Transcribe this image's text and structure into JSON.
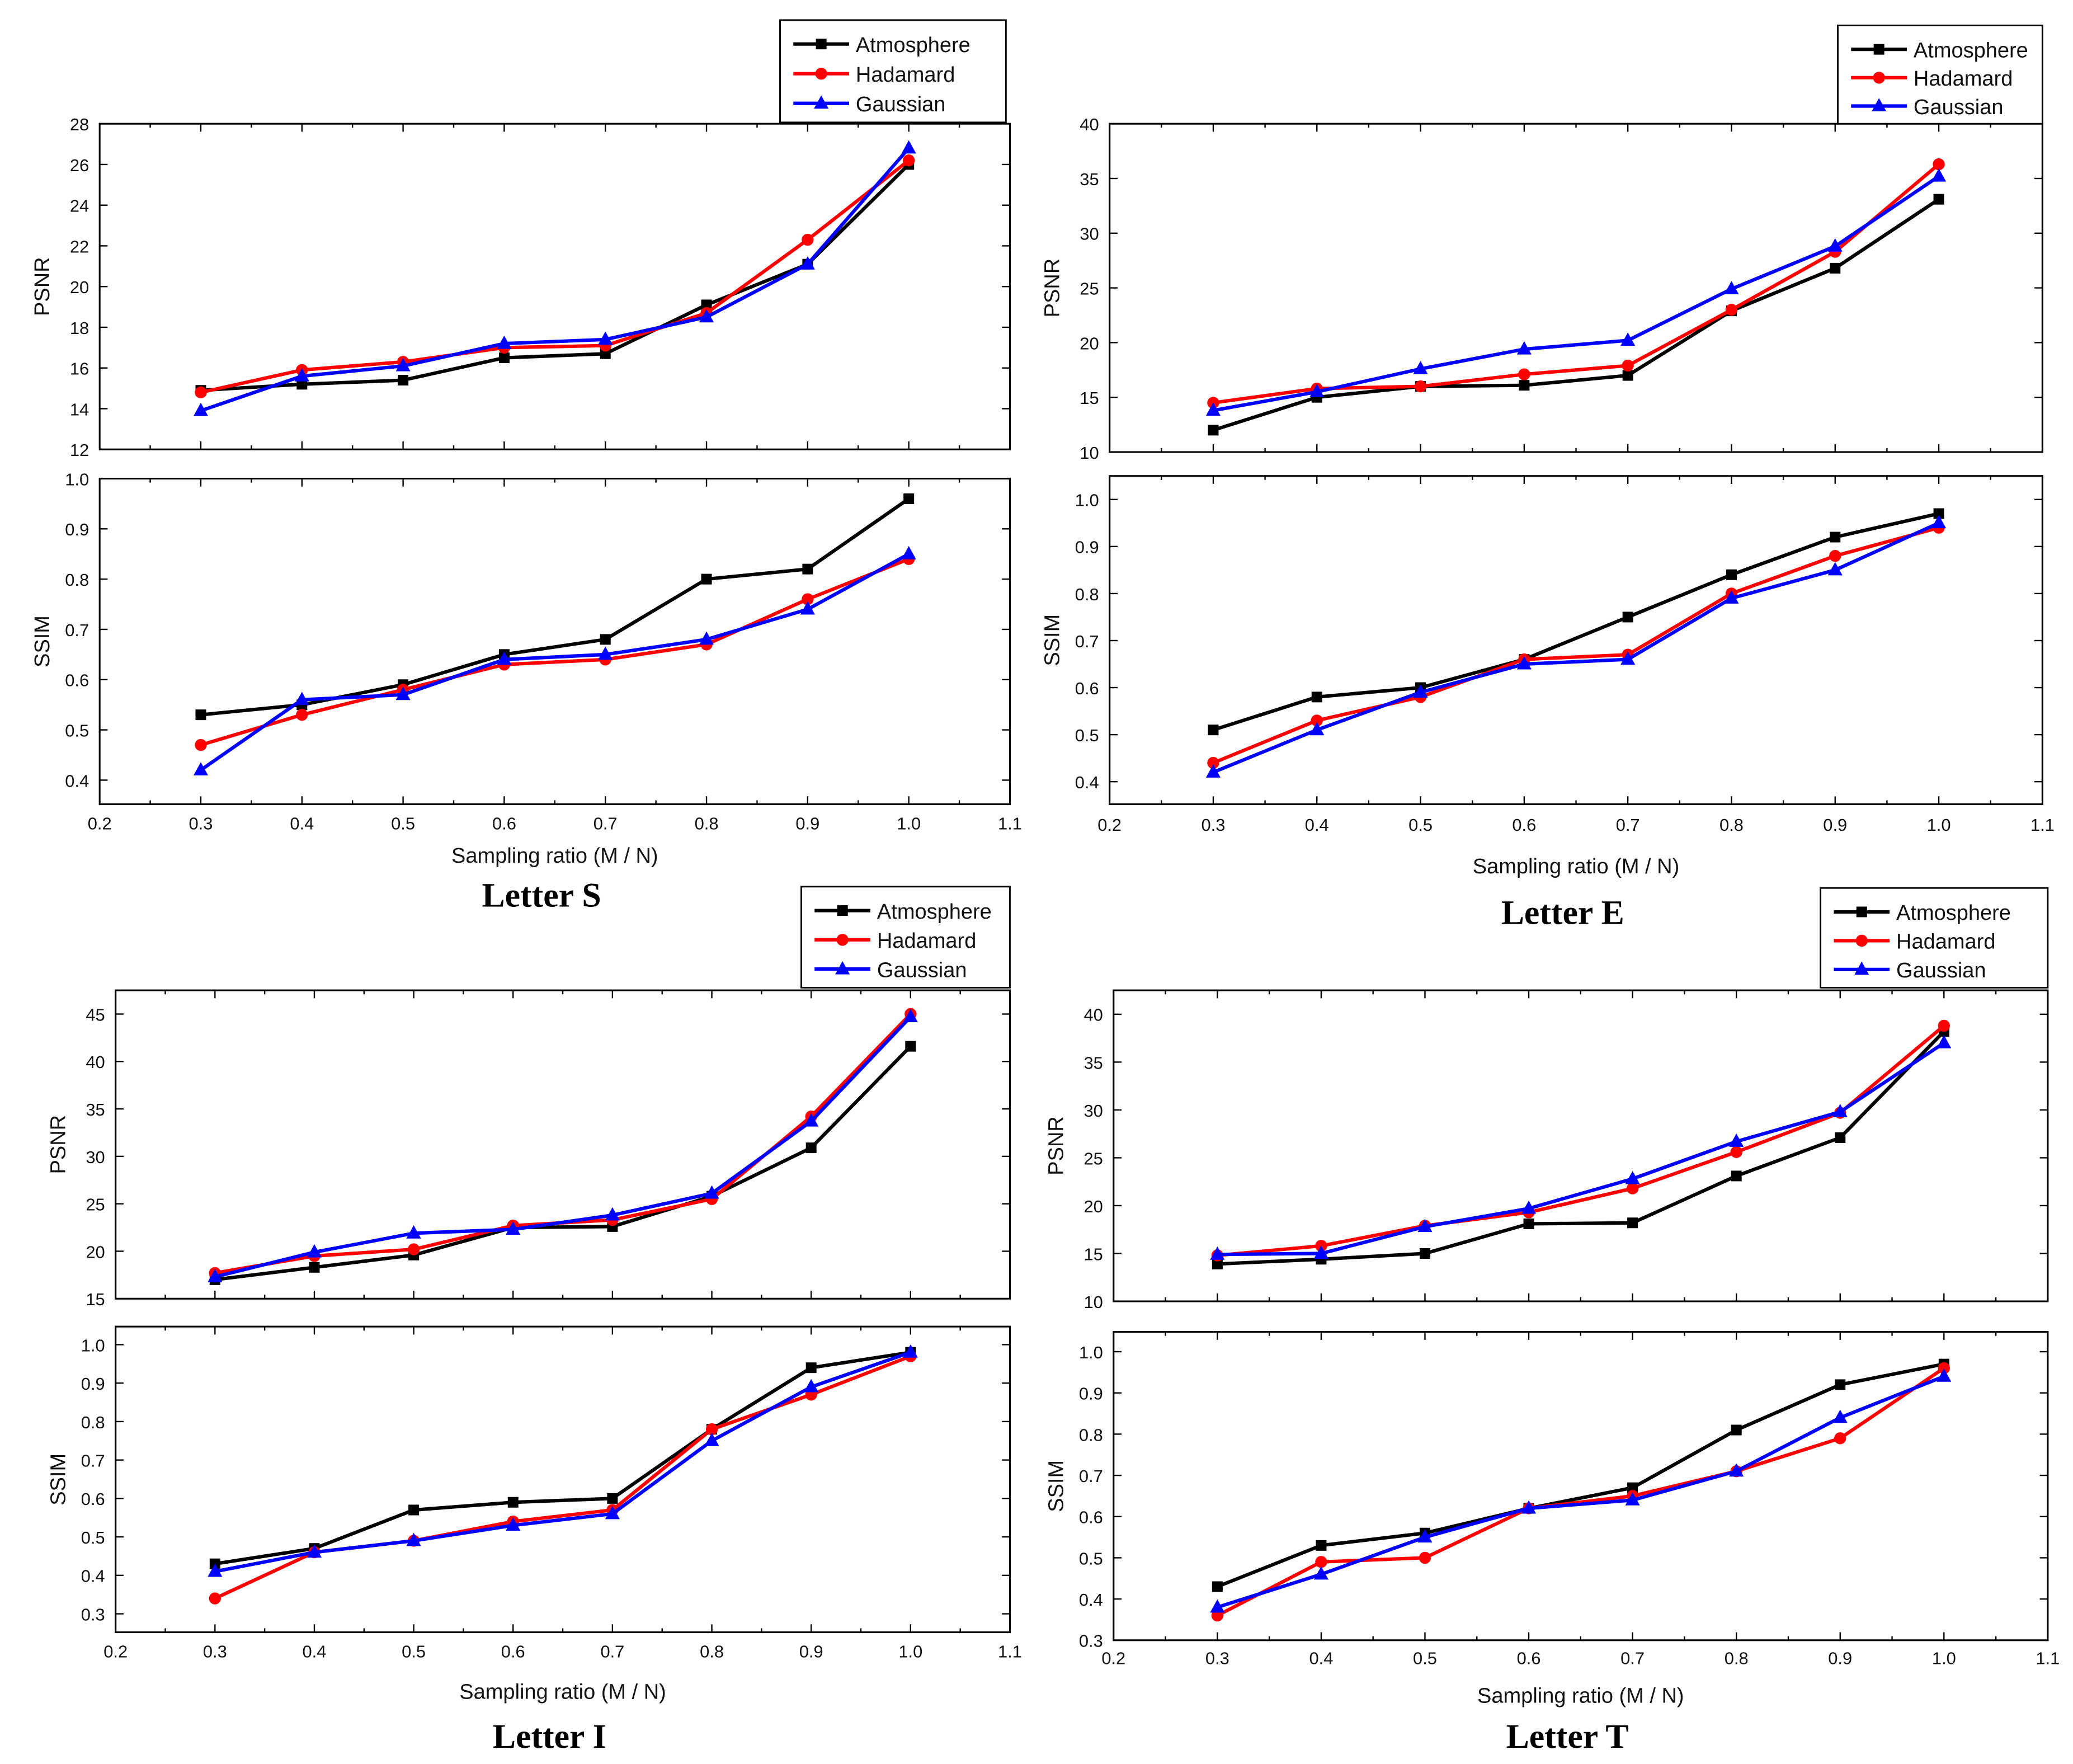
{
  "colors": {
    "Atmosphere": "#000000",
    "Hadamard": "#ff0000",
    "Gaussian": "#0000ff"
  },
  "chart_data": [
    {
      "title": "Letter S",
      "type": "line",
      "xlabel": "Sampling ratio (M / N)",
      "x": [
        0.3,
        0.4,
        0.5,
        0.6,
        0.7,
        0.8,
        0.9,
        1.0
      ],
      "xlim": [
        0.2,
        1.1
      ],
      "xticks": [
        "0.2",
        "0.3",
        "0.4",
        "0.5",
        "0.6",
        "0.7",
        "0.8",
        "0.9",
        "1.0",
        "1.1"
      ],
      "legend": [
        "Atmosphere",
        "Hadamard",
        "Gaussian"
      ],
      "legend_position": "top-right",
      "psnr": {
        "ylabel": "PSNR",
        "ylim": [
          12,
          28
        ],
        "yticks": [
          "12",
          "14",
          "16",
          "18",
          "20",
          "22",
          "24",
          "26",
          "28"
        ],
        "series": [
          {
            "name": "Atmosphere",
            "marker": "square",
            "values": [
              14.9,
              15.2,
              15.4,
              16.5,
              16.7,
              19.1,
              21.1,
              26.0
            ]
          },
          {
            "name": "Hadamard",
            "marker": "circle",
            "values": [
              14.8,
              15.9,
              16.3,
              17.0,
              17.1,
              18.7,
              22.3,
              26.2
            ]
          },
          {
            "name": "Gaussian",
            "marker": "triangle",
            "values": [
              13.9,
              15.6,
              16.1,
              17.2,
              17.4,
              18.5,
              21.1,
              26.8
            ]
          }
        ]
      },
      "ssim": {
        "ylabel": "SSIM",
        "ylim": [
          0.352,
          1.0
        ],
        "yticks": [
          "0.4",
          "0.5",
          "0.6",
          "0.7",
          "0.8",
          "0.9",
          "1.0"
        ],
        "series": [
          {
            "name": "Atmosphere",
            "marker": "square",
            "values": [
              0.53,
              0.55,
              0.59,
              0.65,
              0.68,
              0.8,
              0.82,
              0.96
            ]
          },
          {
            "name": "Hadamard",
            "marker": "circle",
            "values": [
              0.47,
              0.53,
              0.58,
              0.63,
              0.64,
              0.67,
              0.76,
              0.84
            ]
          },
          {
            "name": "Gaussian",
            "marker": "triangle",
            "values": [
              0.42,
              0.56,
              0.57,
              0.64,
              0.65,
              0.68,
              0.74,
              0.85
            ]
          }
        ]
      }
    },
    {
      "title": "Letter E",
      "type": "line",
      "xlabel": "Sampling ratio (M / N)",
      "x": [
        0.3,
        0.4,
        0.5,
        0.6,
        0.7,
        0.8,
        0.9,
        1.0
      ],
      "xlim": [
        0.2,
        1.1
      ],
      "xticks": [
        "0.2",
        "0.3",
        "0.4",
        "0.5",
        "0.6",
        "0.7",
        "0.8",
        "0.9",
        "1.0",
        "1.1"
      ],
      "legend": [
        "Atmosphere",
        "Hadamard",
        "Gaussian"
      ],
      "legend_position": "top-right",
      "psnr": {
        "ylabel": "PSNR",
        "ylim": [
          10,
          40
        ],
        "yticks": [
          "10",
          "15",
          "20",
          "25",
          "30",
          "35",
          "40"
        ],
        "series": [
          {
            "name": "Atmosphere",
            "marker": "square",
            "values": [
              12.0,
              15.0,
              16.0,
              16.1,
              17.0,
              22.9,
              26.8,
              33.1
            ]
          },
          {
            "name": "Hadamard",
            "marker": "circle",
            "values": [
              14.5,
              15.8,
              16.0,
              17.1,
              17.9,
              23.0,
              28.3,
              36.3
            ]
          },
          {
            "name": "Gaussian",
            "marker": "triangle",
            "values": [
              13.8,
              15.5,
              17.6,
              19.4,
              20.2,
              24.9,
              28.8,
              35.2
            ]
          }
        ]
      },
      "ssim": {
        "ylabel": "SSIM",
        "ylim": [
          0.352,
          1.05
        ],
        "yticks": [
          "0.4",
          "0.5",
          "0.6",
          "0.7",
          "0.8",
          "0.9",
          "1.0"
        ],
        "series": [
          {
            "name": "Atmosphere",
            "marker": "square",
            "values": [
              0.51,
              0.58,
              0.6,
              0.66,
              0.75,
              0.84,
              0.92,
              0.97
            ]
          },
          {
            "name": "Hadamard",
            "marker": "circle",
            "values": [
              0.44,
              0.53,
              0.58,
              0.66,
              0.67,
              0.8,
              0.88,
              0.94
            ]
          },
          {
            "name": "Gaussian",
            "marker": "triangle",
            "values": [
              0.42,
              0.51,
              0.59,
              0.65,
              0.66,
              0.79,
              0.85,
              0.95
            ]
          }
        ]
      }
    },
    {
      "title": "Letter I",
      "type": "line",
      "xlabel": "Sampling ratio (M / N)",
      "x": [
        0.3,
        0.4,
        0.5,
        0.6,
        0.7,
        0.8,
        0.9,
        1.0
      ],
      "xlim": [
        0.2,
        1.1
      ],
      "xticks": [
        "0.2",
        "0.3",
        "0.4",
        "0.5",
        "0.6",
        "0.7",
        "0.8",
        "0.9",
        "1.0",
        "1.1"
      ],
      "legend": [
        "Atmosphere",
        "Hadamard",
        "Gaussian"
      ],
      "legend_position": "top-right",
      "psnr": {
        "ylabel": "PSNR",
        "ylim": [
          15,
          47.5
        ],
        "yticks": [
          "15",
          "20",
          "25",
          "30",
          "35",
          "40",
          "45"
        ],
        "series": [
          {
            "name": "Atmosphere",
            "marker": "square",
            "values": [
              17.0,
              18.3,
              19.6,
              22.5,
              22.6,
              25.8,
              30.9,
              41.6
            ]
          },
          {
            "name": "Hadamard",
            "marker": "circle",
            "values": [
              17.7,
              19.5,
              20.2,
              22.7,
              23.3,
              25.5,
              34.2,
              45.0
            ]
          },
          {
            "name": "Gaussian",
            "marker": "triangle",
            "values": [
              17.3,
              19.9,
              21.9,
              22.3,
              23.8,
              26.1,
              33.7,
              44.7
            ]
          }
        ]
      },
      "ssim": {
        "ylabel": "SSIM",
        "ylim": [
          0.252,
          1.047
        ],
        "yticks": [
          "0.3",
          "0.4",
          "0.5",
          "0.6",
          "0.7",
          "0.8",
          "0.9",
          "1.0"
        ],
        "series": [
          {
            "name": "Atmosphere",
            "marker": "square",
            "values": [
              0.43,
              0.47,
              0.57,
              0.59,
              0.6,
              0.78,
              0.94,
              0.98
            ]
          },
          {
            "name": "Hadamard",
            "marker": "circle",
            "values": [
              0.34,
              0.46,
              0.49,
              0.54,
              0.57,
              0.78,
              0.87,
              0.97
            ]
          },
          {
            "name": "Gaussian",
            "marker": "triangle",
            "values": [
              0.41,
              0.46,
              0.49,
              0.53,
              0.56,
              0.75,
              0.89,
              0.98
            ]
          }
        ]
      }
    },
    {
      "title": "Letter T",
      "type": "line",
      "xlabel": "Sampling ratio (M / N)",
      "x": [
        0.3,
        0.4,
        0.5,
        0.6,
        0.7,
        0.8,
        0.9,
        1.0
      ],
      "xlim": [
        0.2,
        1.1
      ],
      "xticks": [
        "0.2",
        "0.3",
        "0.4",
        "0.5",
        "0.6",
        "0.7",
        "0.8",
        "0.9",
        "1.0",
        "1.1"
      ],
      "legend": [
        "Atmosphere",
        "Hadamard",
        "Gaussian"
      ],
      "legend_position": "top-right",
      "psnr": {
        "ylabel": "PSNR",
        "ylim": [
          10,
          42.5
        ],
        "yticks": [
          "10",
          "15",
          "20",
          "25",
          "30",
          "35",
          "40"
        ],
        "series": [
          {
            "name": "Atmosphere",
            "marker": "square",
            "values": [
              13.9,
              14.4,
              15.0,
              18.1,
              18.2,
              23.1,
              27.1,
              38.2
            ]
          },
          {
            "name": "Hadamard",
            "marker": "circle",
            "values": [
              14.8,
              15.8,
              17.9,
              19.3,
              21.8,
              25.6,
              29.7,
              38.8
            ]
          },
          {
            "name": "Gaussian",
            "marker": "triangle",
            "values": [
              14.9,
              15.0,
              17.8,
              19.7,
              22.8,
              26.7,
              29.8,
              37.0
            ]
          }
        ]
      },
      "ssim": {
        "ylabel": "SSIM",
        "ylim": [
          0.3,
          1.048
        ],
        "yticks": [
          "0.3",
          "0.4",
          "0.5",
          "0.6",
          "0.7",
          "0.8",
          "0.9",
          "1.0"
        ],
        "series": [
          {
            "name": "Atmosphere",
            "marker": "square",
            "values": [
              0.43,
              0.53,
              0.56,
              0.62,
              0.67,
              0.81,
              0.92,
              0.97
            ]
          },
          {
            "name": "Hadamard",
            "marker": "circle",
            "values": [
              0.36,
              0.49,
              0.5,
              0.62,
              0.65,
              0.71,
              0.79,
              0.96
            ]
          },
          {
            "name": "Gaussian",
            "marker": "triangle",
            "values": [
              0.38,
              0.46,
              0.55,
              0.62,
              0.64,
              0.71,
              0.84,
              0.94
            ]
          }
        ]
      }
    }
  ]
}
